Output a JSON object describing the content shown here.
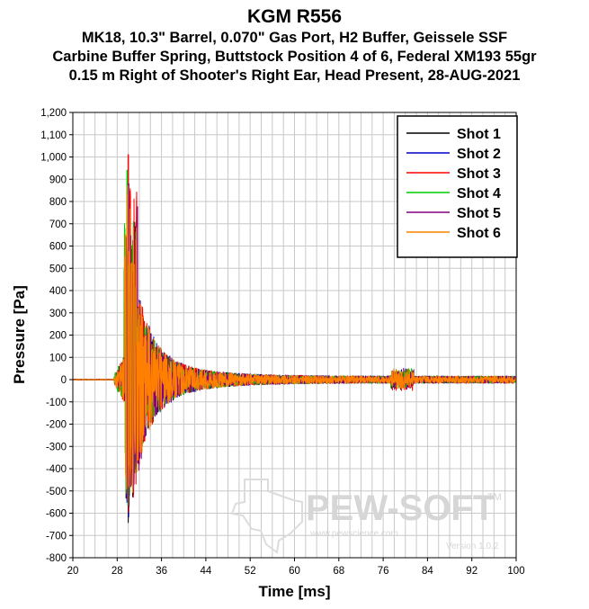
{
  "titles": {
    "title": "KGM R556",
    "line1": "MK18, 10.3\" Barrel, 0.070\" Gas Port, H2 Buffer, Geissele SSF",
    "line2": "Carbine Buffer Spring, Buttstock Position 4 of 6, Federal XM193 55gr",
    "line3": "0.15 m Right of Shooter's Right Ear, Head Present, 28-AUG-2021"
  },
  "watermark": {
    "brand": "PEW-SOFT",
    "trademark": "TM",
    "url": "www.pewscience.com",
    "version": "Version 1.0.2"
  },
  "chart_data": {
    "type": "line",
    "title": "KGM R556",
    "subtitle": [
      "MK18, 10.3\" Barrel, 0.070\" Gas Port, H2 Buffer, Geissele SSF",
      "Carbine Buffer Spring, Buttstock Position 4 of 6, Federal XM193 55gr",
      "0.15 m Right of Shooter's Right Ear, Head Present, 28-AUG-2021"
    ],
    "xlabel": "Time [ms]",
    "ylabel": "Pressure [Pa]",
    "xlim": [
      20,
      100
    ],
    "ylim": [
      -800,
      1200
    ],
    "xticks": [
      20,
      28,
      36,
      44,
      52,
      60,
      68,
      76,
      84,
      92,
      100
    ],
    "xtick_labels": [
      "20",
      "28",
      "36",
      "44",
      "52",
      "60",
      "68",
      "76",
      "84",
      "92",
      "100"
    ],
    "yticks": [
      -800,
      -700,
      -600,
      -500,
      -400,
      -300,
      -200,
      -100,
      0,
      100,
      200,
      300,
      400,
      500,
      600,
      700,
      800,
      900,
      1000,
      1100,
      1200
    ],
    "ytick_labels": [
      "-800",
      "-700",
      "-600",
      "-500",
      "-400",
      "-300",
      "-200",
      "-100",
      "0",
      "100",
      "200",
      "300",
      "400",
      "500",
      "600",
      "700",
      "800",
      "900",
      "1,000",
      "1,100",
      "1,200"
    ],
    "grid": true,
    "legend_position": "top-right",
    "series": [
      {
        "name": "Shot 1",
        "color": "#000000",
        "onset_ms": 27.5,
        "peak_ms": 29.9,
        "peak_pa": 900,
        "trough_pa": -650,
        "echo_ms": 79.5,
        "echo_pa": 30
      },
      {
        "name": "Shot 2",
        "color": "#0000cc",
        "onset_ms": 27.6,
        "peak_ms": 30.0,
        "peak_pa": 840,
        "trough_pa": -660,
        "echo_ms": 79.6,
        "echo_pa": 35
      },
      {
        "name": "Shot 3",
        "color": "#ff0000",
        "onset_ms": 27.5,
        "peak_ms": 30.0,
        "peak_pa": 1010,
        "trough_pa": -640,
        "echo_ms": 79.4,
        "echo_pa": 40
      },
      {
        "name": "Shot 4",
        "color": "#00cc00",
        "onset_ms": 27.4,
        "peak_ms": 29.8,
        "peak_pa": 940,
        "trough_pa": -600,
        "echo_ms": 79.3,
        "echo_pa": 40
      },
      {
        "name": "Shot 5",
        "color": "#800080",
        "onset_ms": 27.6,
        "peak_ms": 30.1,
        "peak_pa": 880,
        "trough_pa": -620,
        "echo_ms": 79.7,
        "echo_pa": 30
      },
      {
        "name": "Shot 6",
        "color": "#ff8000",
        "onset_ms": 27.5,
        "peak_ms": 29.9,
        "peak_pa": 870,
        "trough_pa": -580,
        "echo_ms": 79.5,
        "echo_pa": 35
      }
    ]
  }
}
